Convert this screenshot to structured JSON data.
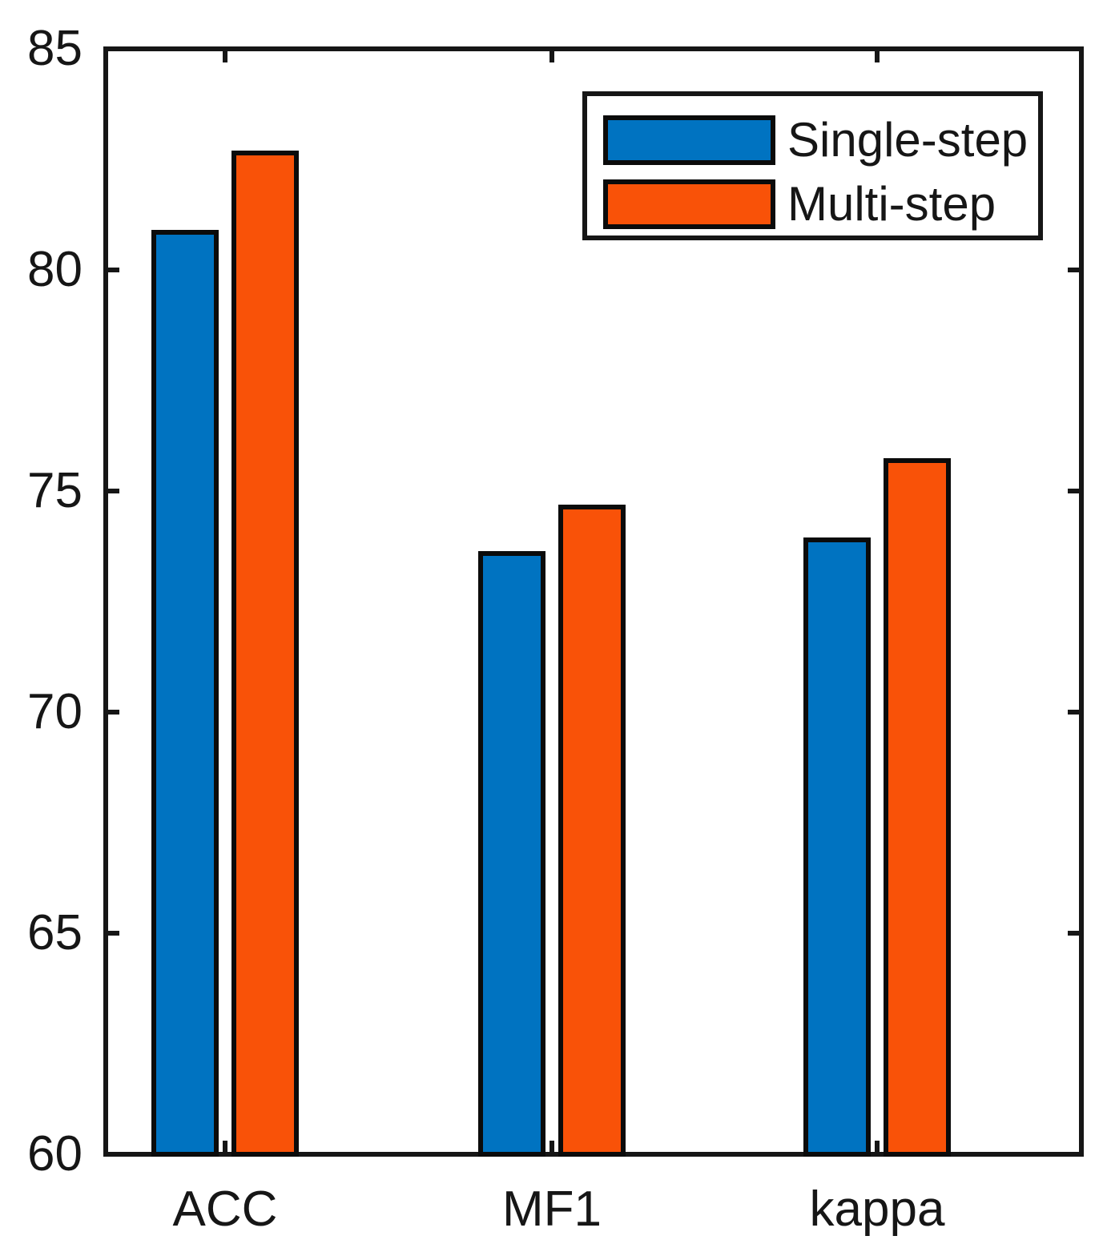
{
  "chart_data": {
    "type": "bar",
    "categories": [
      "ACC",
      "MF1",
      "kappa"
    ],
    "series": [
      {
        "name": "Single-step",
        "color": "#0073C1",
        "values": [
          80.9,
          73.65,
          73.95
        ]
      },
      {
        "name": "Multi-step",
        "color": "#F95208",
        "values": [
          82.7,
          74.7,
          75.75
        ]
      }
    ],
    "title": "",
    "xlabel": "",
    "ylabel": "",
    "ylim": [
      60,
      85
    ],
    "yticks": [
      60,
      65,
      70,
      75,
      80,
      85
    ],
    "grid": false,
    "legend_position": "top-right",
    "axis_color": "#161616",
    "background_color": "#ffffff"
  }
}
